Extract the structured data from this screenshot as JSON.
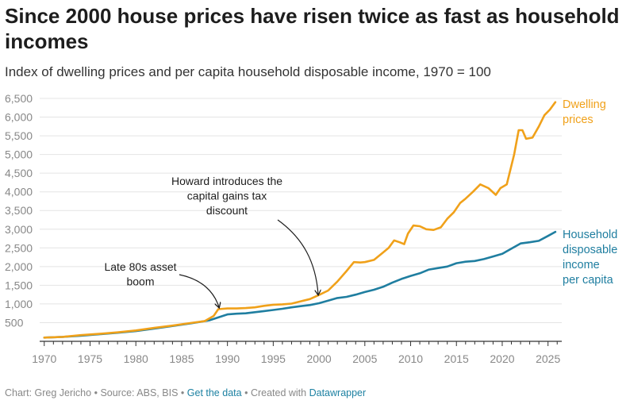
{
  "header": {
    "title": "Since 2000 house prices have risen twice as fast as household incomes",
    "subtitle": "Index of dwelling prices and per capita household disposable income, 1970 = 100"
  },
  "footer": {
    "chart_credit": "Chart: Greg Jericho",
    "source": "Source: ABS, BIS",
    "get_data_label": "Get the data",
    "created_with_prefix": "Created with",
    "datawrapper_label": "Datawrapper",
    "separator": "•"
  },
  "colors": {
    "dwelling": "#f0a11a",
    "income": "#1f7ea0",
    "grid": "#e4e4e4",
    "axis": "#333333",
    "tick_label": "#888888"
  },
  "chart_data": {
    "type": "line",
    "title": "Since 2000 house prices have risen twice as fast as household incomes",
    "subtitle": "Index of dwelling prices and per capita household disposable income, 1970 = 100",
    "xlabel": "",
    "ylabel": "",
    "xlim": [
      1969.5,
      2026.5
    ],
    "ylim": [
      0,
      6500
    ],
    "x_ticks": [
      1970,
      1975,
      1980,
      1985,
      1990,
      1995,
      2000,
      2005,
      2010,
      2015,
      2020,
      2025
    ],
    "y_ticks": [
      500,
      1000,
      1500,
      2000,
      2500,
      3000,
      3500,
      4000,
      4500,
      5000,
      5500,
      6000,
      6500
    ],
    "y_tick_labels": [
      "500",
      "1,000",
      "1,500",
      "2,000",
      "2,500",
      "3,000",
      "3,500",
      "4,000",
      "4,500",
      "5,000",
      "5,500",
      "6,000",
      "6,500"
    ],
    "grid": true,
    "legend": "direct labels at line ends",
    "series": [
      {
        "name": "Dwelling prices",
        "label_lines": [
          "Dwelling",
          "prices"
        ],
        "color": "#f0a11a",
        "points": [
          [
            1970.0,
            100
          ],
          [
            1972.0,
            120
          ],
          [
            1974.0,
            165
          ],
          [
            1976.0,
            200
          ],
          [
            1978.0,
            240
          ],
          [
            1980.0,
            290
          ],
          [
            1982.0,
            360
          ],
          [
            1984.0,
            420
          ],
          [
            1986.0,
            490
          ],
          [
            1987.5,
            540
          ],
          [
            1988.5,
            680
          ],
          [
            1989.0,
            860
          ],
          [
            1990.0,
            880
          ],
          [
            1991.0,
            880
          ],
          [
            1992.0,
            890
          ],
          [
            1993.0,
            910
          ],
          [
            1994.0,
            950
          ],
          [
            1995.0,
            980
          ],
          [
            1996.0,
            990
          ],
          [
            1997.0,
            1010
          ],
          [
            1998.0,
            1070
          ],
          [
            1999.0,
            1130
          ],
          [
            2000.0,
            1240
          ],
          [
            2001.0,
            1360
          ],
          [
            2002.0,
            1600
          ],
          [
            2003.0,
            1880
          ],
          [
            2003.8,
            2120
          ],
          [
            2004.5,
            2110
          ],
          [
            2005.0,
            2120
          ],
          [
            2006.0,
            2180
          ],
          [
            2007.0,
            2380
          ],
          [
            2007.6,
            2500
          ],
          [
            2008.2,
            2700
          ],
          [
            2008.8,
            2650
          ],
          [
            2009.3,
            2600
          ],
          [
            2009.7,
            2880
          ],
          [
            2010.3,
            3100
          ],
          [
            2011.0,
            3080
          ],
          [
            2011.7,
            3000
          ],
          [
            2012.5,
            2980
          ],
          [
            2013.3,
            3050
          ],
          [
            2014.0,
            3280
          ],
          [
            2014.7,
            3450
          ],
          [
            2015.4,
            3700
          ],
          [
            2016.0,
            3820
          ],
          [
            2016.8,
            4000
          ],
          [
            2017.6,
            4200
          ],
          [
            2018.5,
            4100
          ],
          [
            2019.3,
            3920
          ],
          [
            2019.8,
            4100
          ],
          [
            2020.5,
            4200
          ],
          [
            2021.3,
            5000
          ],
          [
            2021.8,
            5650
          ],
          [
            2022.2,
            5650
          ],
          [
            2022.6,
            5420
          ],
          [
            2023.3,
            5450
          ],
          [
            2024.0,
            5750
          ],
          [
            2024.6,
            6050
          ],
          [
            2025.2,
            6200
          ],
          [
            2025.8,
            6400
          ]
        ]
      },
      {
        "name": "Household disposable income per capita",
        "label_lines": [
          "Household",
          "disposable",
          "income",
          "per capita"
        ],
        "color": "#1f7ea0",
        "points": [
          [
            1970.0,
            100
          ],
          [
            1972.0,
            120
          ],
          [
            1974.0,
            150
          ],
          [
            1976.0,
            190
          ],
          [
            1978.0,
            230
          ],
          [
            1980.0,
            275
          ],
          [
            1982.0,
            340
          ],
          [
            1984.0,
            410
          ],
          [
            1986.0,
            480
          ],
          [
            1988.0,
            560
          ],
          [
            1989.0,
            640
          ],
          [
            1990.0,
            720
          ],
          [
            1991.0,
            740
          ],
          [
            1992.0,
            750
          ],
          [
            1993.0,
            780
          ],
          [
            1994.0,
            810
          ],
          [
            1995.0,
            840
          ],
          [
            1996.0,
            870
          ],
          [
            1997.0,
            910
          ],
          [
            1998.0,
            940
          ],
          [
            1999.0,
            970
          ],
          [
            2000.0,
            1020
          ],
          [
            2001.0,
            1090
          ],
          [
            2002.0,
            1160
          ],
          [
            2003.0,
            1190
          ],
          [
            2004.0,
            1250
          ],
          [
            2005.0,
            1320
          ],
          [
            2006.0,
            1380
          ],
          [
            2007.0,
            1460
          ],
          [
            2008.0,
            1570
          ],
          [
            2009.0,
            1670
          ],
          [
            2010.0,
            1750
          ],
          [
            2011.0,
            1820
          ],
          [
            2012.0,
            1920
          ],
          [
            2013.0,
            1960
          ],
          [
            2014.0,
            2000
          ],
          [
            2015.0,
            2090
          ],
          [
            2016.0,
            2130
          ],
          [
            2017.0,
            2150
          ],
          [
            2018.0,
            2200
          ],
          [
            2019.0,
            2270
          ],
          [
            2020.0,
            2340
          ],
          [
            2021.0,
            2480
          ],
          [
            2022.0,
            2620
          ],
          [
            2023.0,
            2650
          ],
          [
            2024.0,
            2690
          ],
          [
            2025.0,
            2820
          ],
          [
            2025.8,
            2930
          ]
        ]
      }
    ],
    "annotations": [
      {
        "text_lines": [
          "Howard introduces the",
          "capital gains tax",
          "discount"
        ],
        "x": 2000.0,
        "y": 1240
      },
      {
        "text_lines": [
          "Late 80s asset",
          "boom"
        ],
        "x": 1989.0,
        "y": 860
      }
    ]
  }
}
